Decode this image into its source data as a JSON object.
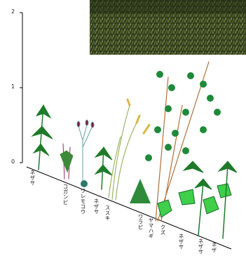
{
  "axis": {
    "ticks": [
      "2",
      "1",
      "0"
    ]
  },
  "plants": [
    {
      "label": "ネザサ"
    },
    {
      "label": "コガンビ"
    },
    {
      "label": "ワレモコウ"
    },
    {
      "label": "ネザサ"
    },
    {
      "label": "ススキ"
    },
    {
      "label": "ワラビ"
    },
    {
      "label": "ヤマハギ"
    },
    {
      "label": "クズ"
    },
    {
      "label": "ネザサ"
    },
    {
      "label": "ネザサ"
    },
    {
      "label": "ネザ"
    }
  ]
}
